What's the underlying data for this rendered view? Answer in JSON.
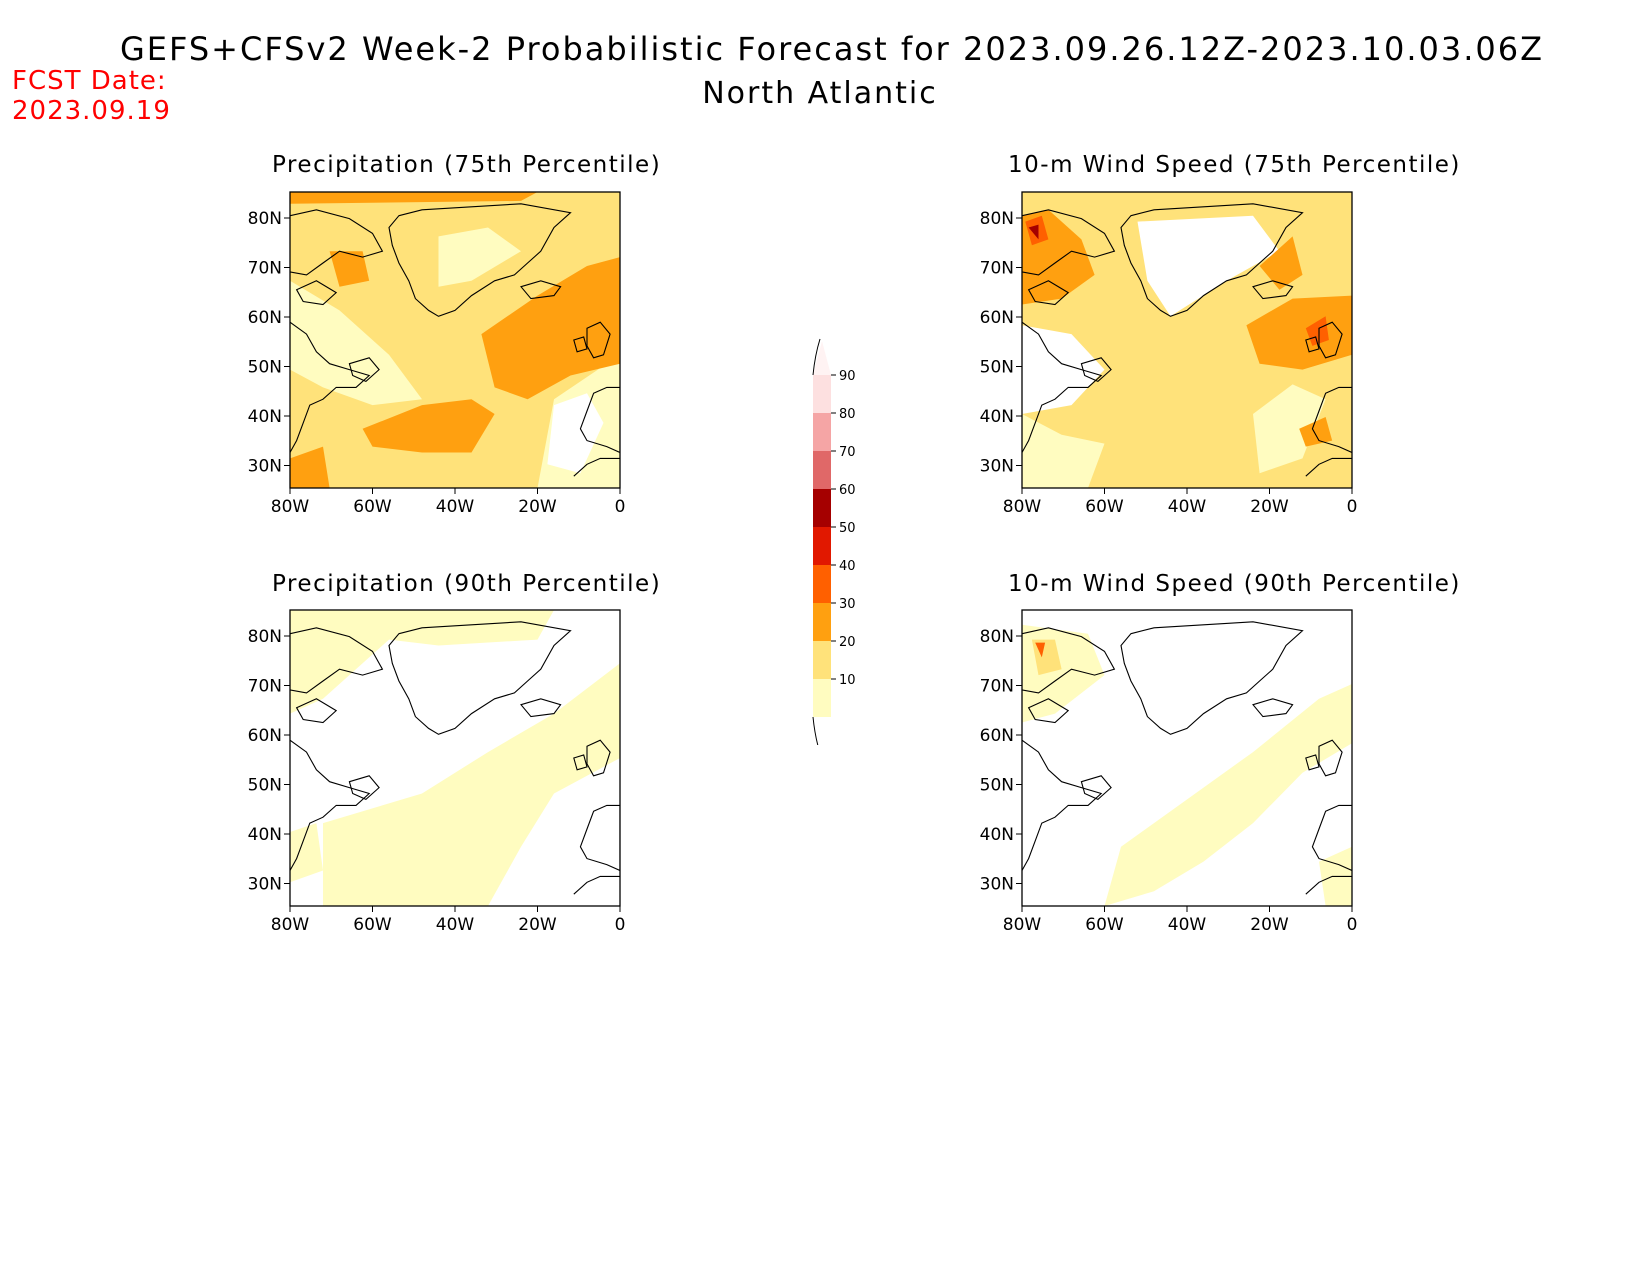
{
  "header": {
    "title": "GEFS+CFSv2 Week-2 Probabilistic Forecast for 2023.09.26.12Z-2023.10.03.06Z",
    "subtitle": "North Atlantic",
    "fcst_label": "FCST Date:",
    "fcst_date": "2023.09.19"
  },
  "colors": {
    "c10": "#fffcc0",
    "c20": "#ffe27a",
    "c30": "#ffa010",
    "c40": "#ff6000",
    "c50": "#e11800",
    "c60": "#a50000",
    "c70": "#e06868",
    "c80": "#f5a5a5",
    "c90": "#fde0e0",
    "land_line": "#000000"
  },
  "colorbar": {
    "labels": [
      "90",
      "80",
      "70",
      "60",
      "50",
      "40",
      "30",
      "20",
      "10"
    ]
  },
  "axes": {
    "lat_labels": [
      "80N",
      "70N",
      "60N",
      "50N",
      "40N",
      "30N"
    ],
    "lon_labels": [
      "80W",
      "60W",
      "40W",
      "20W",
      "0"
    ]
  },
  "panels": [
    {
      "id": "precip75",
      "title": "Precipitation (75th Percentile)"
    },
    {
      "id": "wind75",
      "title": "10-m Wind Speed (75th Percentile)"
    },
    {
      "id": "precip90",
      "title": "Precipitation (90th Percentile)"
    },
    {
      "id": "wind90",
      "title": "10-m Wind Speed (90th Percentile)"
    }
  ]
}
